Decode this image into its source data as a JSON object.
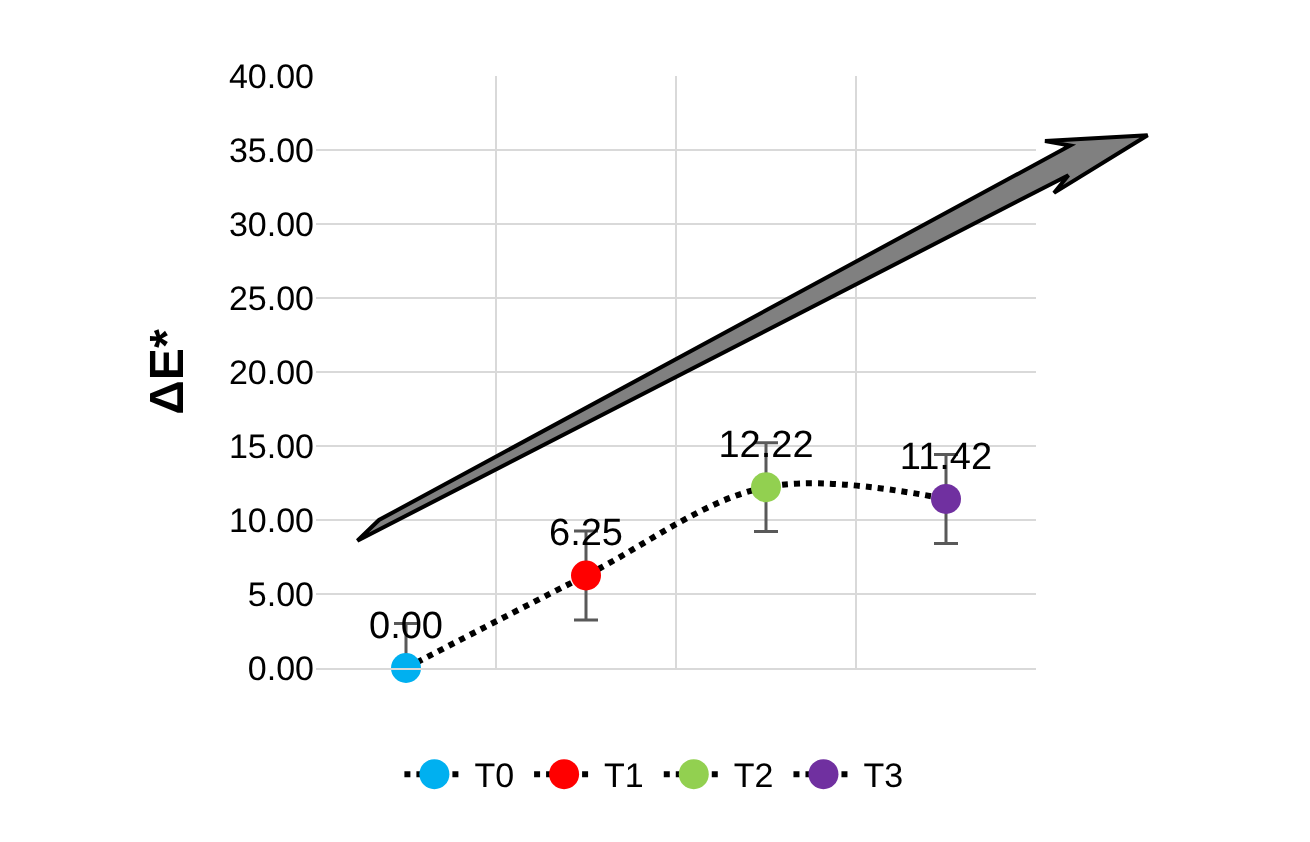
{
  "chart_data": {
    "type": "line",
    "ylabel": "ΔE*",
    "categories": [
      null,
      null,
      null,
      null
    ],
    "series": [
      {
        "name": "T0",
        "color": "#00b0f0",
        "values": [
          0.0,
          null,
          null,
          null
        ],
        "errors": [
          [
            0,
            3
          ],
          null,
          null,
          null
        ],
        "value_labels": [
          "0.00",
          null,
          null,
          null
        ]
      },
      {
        "name": "T1",
        "color": "#ff0000",
        "values": [
          null,
          6.25,
          null,
          null
        ],
        "errors": [
          null,
          3,
          null,
          null
        ],
        "value_labels": [
          null,
          "6.25",
          null,
          null
        ]
      },
      {
        "name": "T2",
        "color": "#92d050",
        "values": [
          null,
          null,
          12.22,
          null
        ],
        "errors": [
          null,
          null,
          3,
          null
        ],
        "value_labels": [
          null,
          null,
          "12.22",
          null
        ]
      },
      {
        "name": "T3",
        "color": "#7030a0",
        "values": [
          null,
          null,
          null,
          11.42
        ],
        "errors": [
          null,
          null,
          null,
          3
        ],
        "value_labels": [
          null,
          null,
          null,
          "11.42"
        ]
      }
    ],
    "ylim": [
      0,
      40
    ],
    "yticks": [
      {
        "value": 0,
        "label": "0.00"
      },
      {
        "value": 5,
        "label": "5.00"
      },
      {
        "value": 10,
        "label": "10.00"
      },
      {
        "value": 15,
        "label": "15.00"
      },
      {
        "value": 20,
        "label": "20.00"
      },
      {
        "value": 25,
        "label": "25.00"
      },
      {
        "value": 30,
        "label": "30.00"
      },
      {
        "value": 35,
        "label": "35.00"
      },
      {
        "value": 40,
        "label": "40.00"
      }
    ],
    "grid": true,
    "legend": "bottom",
    "marker": "circle",
    "line_style": "dotted",
    "tick_labels": "y"
  }
}
